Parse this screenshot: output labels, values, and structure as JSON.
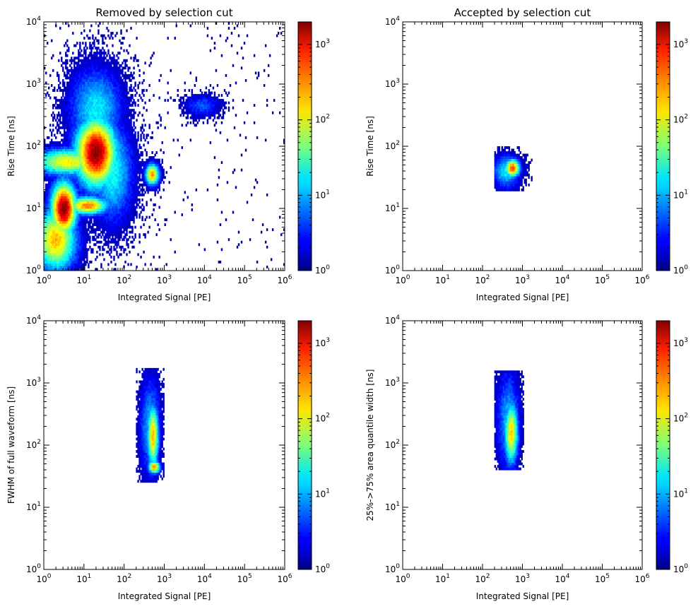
{
  "figure": {
    "background": "#ffffff"
  },
  "colormap": {
    "name": "jet",
    "ticks": [
      {
        "base": "10",
        "exp": "0"
      },
      {
        "base": "10",
        "exp": "1"
      },
      {
        "base": "10",
        "exp": "2"
      },
      {
        "base": "10",
        "exp": "3"
      }
    ],
    "range_log10": [
      0,
      3.3
    ]
  },
  "chart_data": [
    {
      "type": "heatmap",
      "title": "Removed by selection cut",
      "xlabel": "Integrated Signal [PE]",
      "ylabel": "Rise Time [ns]",
      "xscale": "log",
      "yscale": "log",
      "xlim": [
        1,
        1000000
      ],
      "ylim": [
        1,
        10000
      ],
      "xticks": [
        {
          "b": "10",
          "e": "0"
        },
        {
          "b": "10",
          "e": "1"
        },
        {
          "b": "10",
          "e": "2"
        },
        {
          "b": "10",
          "e": "3"
        },
        {
          "b": "10",
          "e": "4"
        },
        {
          "b": "10",
          "e": "5"
        },
        {
          "b": "10",
          "e": "6"
        }
      ],
      "yticks": [
        {
          "b": "10",
          "e": "0"
        },
        {
          "b": "10",
          "e": "1"
        },
        {
          "b": "10",
          "e": "2"
        },
        {
          "b": "10",
          "e": "3"
        },
        {
          "b": "10",
          "e": "4"
        }
      ],
      "blobs": [
        {
          "cx": 1.3,
          "cy": 1.9,
          "sx": 0.35,
          "sy": 0.38,
          "peak": 3.3
        },
        {
          "cx": 0.5,
          "cy": 1.0,
          "sx": 0.22,
          "sy": 0.3,
          "peak": 3.3
        },
        {
          "cx": 0.3,
          "cy": 0.5,
          "sx": 0.35,
          "sy": 0.35,
          "peak": 2.3
        },
        {
          "cx": 0.6,
          "cy": 1.75,
          "sx": 0.6,
          "sy": 0.15,
          "peak": 2.1
        },
        {
          "cx": 1.1,
          "cy": 1.05,
          "sx": 0.35,
          "sy": 0.1,
          "peak": 2.5
        },
        {
          "cx": 2.7,
          "cy": 1.55,
          "sx": 0.12,
          "sy": 0.12,
          "peak": 2.4
        },
        {
          "cx": 3.95,
          "cy": 2.65,
          "sx": 0.3,
          "sy": 0.12,
          "peak": 0.7
        },
        {
          "cx": 1.7,
          "cy": 1.6,
          "sx": 0.35,
          "sy": 0.55,
          "peak": 1.3
        },
        {
          "cx": 1.3,
          "cy": 2.6,
          "sx": 0.45,
          "sy": 0.45,
          "peak": 1.2
        }
      ]
    },
    {
      "type": "heatmap",
      "title": "Accepted by selection cut",
      "xlabel": "Integrated Signal [PE]",
      "ylabel": "Rise Time [ns]",
      "xscale": "log",
      "yscale": "log",
      "xlim": [
        1,
        1000000
      ],
      "ylim": [
        1,
        10000
      ],
      "xticks": [
        {
          "b": "10",
          "e": "0"
        },
        {
          "b": "10",
          "e": "1"
        },
        {
          "b": "10",
          "e": "2"
        },
        {
          "b": "10",
          "e": "3"
        },
        {
          "b": "10",
          "e": "4"
        },
        {
          "b": "10",
          "e": "5"
        },
        {
          "b": "10",
          "e": "6"
        }
      ],
      "yticks": [
        {
          "b": "10",
          "e": "0"
        },
        {
          "b": "10",
          "e": "1"
        },
        {
          "b": "10",
          "e": "2"
        },
        {
          "b": "10",
          "e": "3"
        },
        {
          "b": "10",
          "e": "4"
        }
      ],
      "region": {
        "xmin": 2.3,
        "xmax": 3.25,
        "ymin": 1.3,
        "ymax": 2.0
      },
      "blobs": [
        {
          "cx": 2.75,
          "cy": 1.65,
          "sx": 0.13,
          "sy": 0.1,
          "peak": 2.7
        },
        {
          "cx": 2.6,
          "cy": 1.6,
          "sx": 0.25,
          "sy": 0.18,
          "peak": 1.2
        }
      ]
    },
    {
      "type": "heatmap",
      "title": "",
      "xlabel": "Integrated Signal [PE]",
      "ylabel": "FWHM of full waveform [ns]",
      "xscale": "log",
      "yscale": "log",
      "xlim": [
        1,
        1000000
      ],
      "ylim": [
        1,
        10000
      ],
      "xticks": [
        {
          "b": "10",
          "e": "0"
        },
        {
          "b": "10",
          "e": "1"
        },
        {
          "b": "10",
          "e": "2"
        },
        {
          "b": "10",
          "e": "3"
        },
        {
          "b": "10",
          "e": "4"
        },
        {
          "b": "10",
          "e": "5"
        },
        {
          "b": "10",
          "e": "6"
        }
      ],
      "yticks": [
        {
          "b": "10",
          "e": "0"
        },
        {
          "b": "10",
          "e": "1"
        },
        {
          "b": "10",
          "e": "2"
        },
        {
          "b": "10",
          "e": "3"
        },
        {
          "b": "10",
          "e": "4"
        }
      ],
      "region": {
        "xmin": 2.3,
        "xmax": 3.0,
        "ymin": 1.4,
        "ymax": 3.25
      },
      "blobs": [
        {
          "cx": 2.72,
          "cy": 2.15,
          "sx": 0.1,
          "sy": 0.35,
          "peak": 2.3
        },
        {
          "cx": 2.75,
          "cy": 1.65,
          "sx": 0.1,
          "sy": 0.07,
          "peak": 2.5
        },
        {
          "cx": 2.65,
          "cy": 2.3,
          "sx": 0.18,
          "sy": 0.55,
          "peak": 1.0
        }
      ]
    },
    {
      "type": "heatmap",
      "title": "",
      "xlabel": "Integrated Signal [PE]",
      "ylabel": "25%->75% area quantile width [ns]",
      "xscale": "log",
      "yscale": "log",
      "xlim": [
        1,
        1000000
      ],
      "ylim": [
        1,
        10000
      ],
      "xticks": [
        {
          "b": "10",
          "e": "0"
        },
        {
          "b": "10",
          "e": "1"
        },
        {
          "b": "10",
          "e": "2"
        },
        {
          "b": "10",
          "e": "3"
        },
        {
          "b": "10",
          "e": "4"
        },
        {
          "b": "10",
          "e": "5"
        },
        {
          "b": "10",
          "e": "6"
        }
      ],
      "yticks": [
        {
          "b": "10",
          "e": "0"
        },
        {
          "b": "10",
          "e": "1"
        },
        {
          "b": "10",
          "e": "2"
        },
        {
          "b": "10",
          "e": "3"
        },
        {
          "b": "10",
          "e": "4"
        }
      ],
      "region": {
        "xmin": 2.3,
        "xmax": 3.05,
        "ymin": 1.6,
        "ymax": 3.2
      },
      "blobs": [
        {
          "cx": 2.72,
          "cy": 2.2,
          "sx": 0.12,
          "sy": 0.35,
          "peak": 2.2
        },
        {
          "cx": 2.65,
          "cy": 2.4,
          "sx": 0.2,
          "sy": 0.55,
          "peak": 1.0
        }
      ]
    }
  ]
}
